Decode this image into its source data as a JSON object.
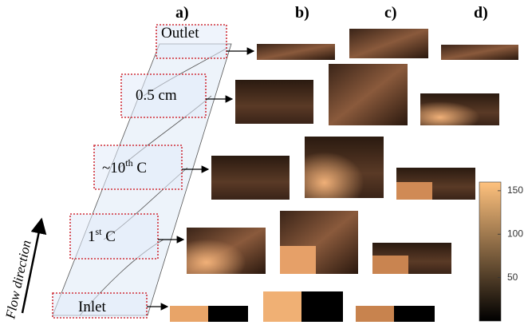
{
  "panel_labels": [
    "a)",
    "b)",
    "c)",
    "d)"
  ],
  "sections": {
    "outlet": "Outlet",
    "mid": "0.5 cm",
    "tenth": {
      "prefix": "~10",
      "sup": "th",
      "suffix": " C"
    },
    "first": {
      "prefix": "1",
      "sup": "st",
      "suffix": " C"
    },
    "inlet": "Inlet"
  },
  "flow_label": "Flow direction",
  "colorbar": {
    "clim": [
      0,
      160
    ],
    "ticks": [
      150,
      100,
      50
    ]
  }
}
